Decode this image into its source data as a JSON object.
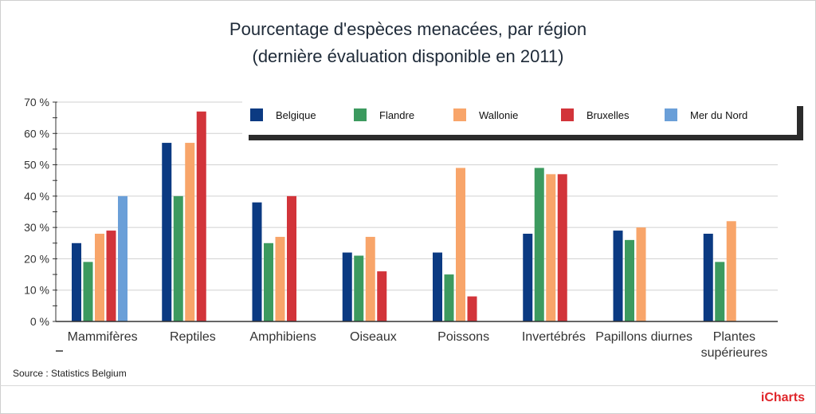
{
  "title_line1": "Pourcentage d'espèces menacées, par région",
  "title_line2": "(dernière évaluation disponible en 2011)",
  "source": "Source : Statistics Belgium",
  "brand": "iCharts",
  "colors": {
    "Belgique": "#0b3a82",
    "Flandre": "#3c9a5f",
    "Wallonie": "#f8a56a",
    "Bruxelles": "#d2343a",
    "Mer du Nord": "#6a9fd8"
  },
  "chart_data": {
    "type": "bar",
    "title": "Pourcentage d'espèces menacées, par région (dernière évaluation disponible en 2011)",
    "categories": [
      "Mammifères",
      "Reptiles",
      "Amphibiens",
      "Oiseaux",
      "Poissons",
      "Invertébrés",
      "Papillons diurnes",
      "Plantes supérieures"
    ],
    "category_lines": [
      [
        "Mammifères"
      ],
      [
        "Reptiles"
      ],
      [
        "Amphibiens"
      ],
      [
        "Oiseaux"
      ],
      [
        "Poissons"
      ],
      [
        "Invertébrés"
      ],
      [
        "Papillons diurnes"
      ],
      [
        "Plantes",
        "supérieures"
      ]
    ],
    "series": [
      {
        "name": "Belgique",
        "values": [
          25,
          57,
          38,
          22,
          22,
          28,
          29,
          28
        ]
      },
      {
        "name": "Flandre",
        "values": [
          19,
          40,
          25,
          21,
          15,
          49,
          26,
          19
        ]
      },
      {
        "name": "Wallonie",
        "values": [
          28,
          57,
          27,
          27,
          49,
          47,
          30,
          32
        ]
      },
      {
        "name": "Bruxelles",
        "values": [
          29,
          67,
          40,
          16,
          8,
          47,
          null,
          null
        ]
      },
      {
        "name": "Mer du Nord",
        "values": [
          40,
          null,
          null,
          null,
          null,
          null,
          null,
          null
        ]
      }
    ],
    "ylim": [
      0,
      70
    ],
    "yticks": [
      "0 %",
      "10 %",
      "20 %",
      "30 %",
      "40 %",
      "50 %",
      "60 %",
      "70 %"
    ],
    "grid": true,
    "legend_position": "top"
  }
}
